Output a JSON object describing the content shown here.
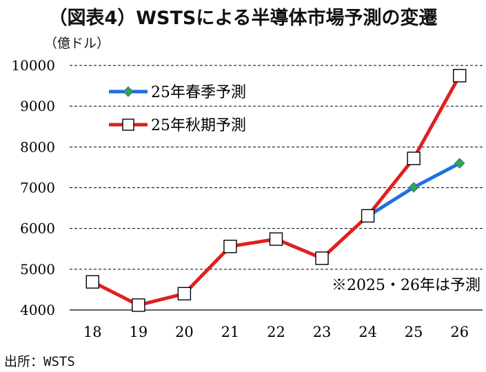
{
  "title": "（図表4）WSTSによる半導体市場予測の変遷",
  "unit_label": "（億ドル）",
  "source": "出所：WSTS",
  "note": "※2025・26年は予測",
  "colors": {
    "spring": "#1f6fe0",
    "spring_marker": "#33a64a",
    "autumn": "#e02020",
    "grid": "#000000"
  },
  "chart_data": {
    "type": "line",
    "title": "（図表4）WSTSによる半導体市場予測の変遷",
    "xlabel": "",
    "ylabel": "（億ドル）",
    "categories": [
      "18",
      "19",
      "20",
      "21",
      "22",
      "23",
      "24",
      "25",
      "26"
    ],
    "ylim": [
      4000,
      10000
    ],
    "yticks": [
      4000,
      5000,
      6000,
      7000,
      8000,
      9000,
      10000
    ],
    "grid": true,
    "legend_position": "top-left",
    "series": [
      {
        "name": "25年春季予測",
        "marker": "diamond",
        "values": [
          null,
          null,
          null,
          null,
          null,
          null,
          6300,
          7010,
          7600
        ]
      },
      {
        "name": "25年秋期予測",
        "marker": "square",
        "values": [
          4690,
          4120,
          4400,
          5560,
          5740,
          5270,
          6310,
          7720,
          9750
        ]
      }
    ],
    "annotations": [
      "※2025・26年は予測"
    ]
  }
}
